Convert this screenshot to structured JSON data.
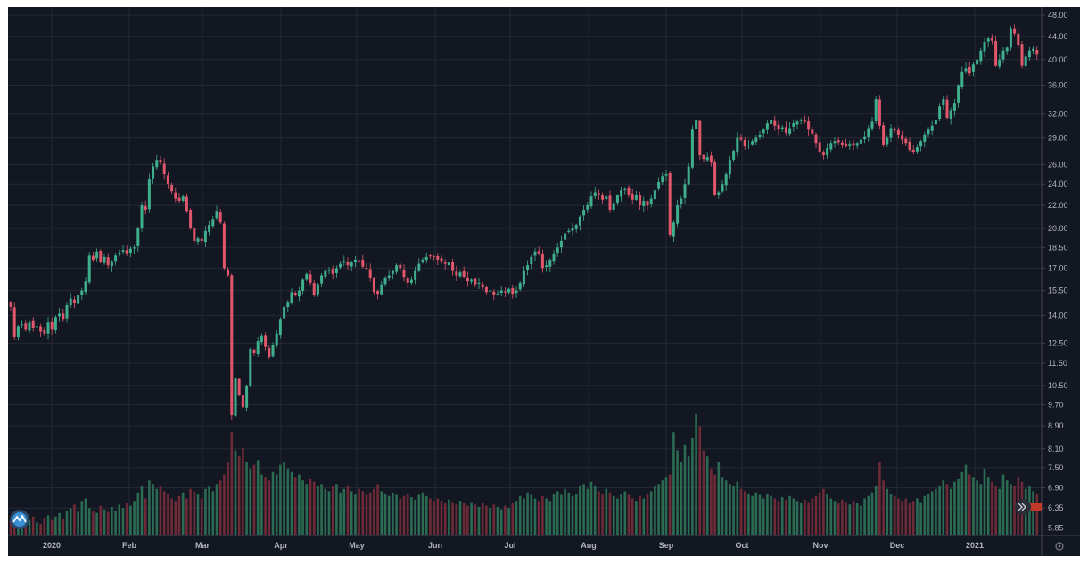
{
  "chart_data": {
    "type": "candlestick",
    "title": "",
    "xlabel": "",
    "ylabel": "",
    "y_scale": "log",
    "ylim": [
      5.85,
      48.0
    ],
    "grid": true,
    "price_ticks": [
      "48.00",
      "44.00",
      "40.00",
      "36.00",
      "32.00",
      "29.00",
      "26.00",
      "24.00",
      "22.00",
      "20.00",
      "18.50",
      "17.00",
      "15.50",
      "14.00",
      "12.50",
      "11.50",
      "10.50",
      "9.70",
      "8.90",
      "8.10",
      "7.50",
      "6.90",
      "6.35",
      "5.85"
    ],
    "time_ticks": [
      "2020",
      "Feb",
      "Mar",
      "Apr",
      "May",
      "Jun",
      "Jul",
      "Aug",
      "Sep",
      "Oct",
      "Nov",
      "Dec",
      "2021"
    ],
    "close": [
      14.5,
      12.8,
      13.4,
      13.5,
      13.2,
      13.6,
      13.3,
      13.4,
      13.1,
      13.0,
      13.6,
      13.2,
      13.9,
      14.1,
      13.8,
      14.6,
      15.0,
      14.7,
      15.2,
      15.5,
      16.1,
      17.9,
      17.6,
      18.2,
      17.4,
      17.8,
      17.2,
      17.5,
      17.9,
      18.1,
      18.3,
      18.0,
      18.4,
      18.5,
      20.0,
      22.0,
      21.6,
      24.5,
      25.8,
      26.5,
      26.2,
      25.0,
      24.0,
      23.3,
      22.6,
      22.4,
      22.8,
      21.5,
      20.0,
      19.0,
      19.2,
      19.0,
      19.8,
      20.3,
      20.8,
      21.5,
      20.5,
      17.0,
      16.5,
      9.3,
      10.8,
      10.1,
      9.6,
      10.5,
      12.2,
      12.0,
      12.6,
      12.9,
      12.3,
      11.8,
      12.4,
      13.0,
      13.8,
      14.5,
      14.8,
      15.4,
      15.2,
      15.5,
      16.2,
      16.6,
      16.0,
      15.2,
      15.9,
      16.5,
      16.8,
      16.9,
      16.6,
      17.0,
      17.3,
      17.5,
      17.2,
      17.4,
      17.6,
      17.5,
      17.1,
      17.0,
      16.3,
      15.4,
      15.3,
      15.9,
      16.3,
      16.5,
      16.8,
      17.2,
      17.0,
      16.4,
      16.0,
      16.2,
      16.8,
      17.3,
      17.6,
      17.8,
      17.9,
      17.8,
      17.6,
      17.5,
      17.3,
      17.4,
      16.8,
      16.5,
      16.7,
      16.4,
      16.1,
      16.2,
      15.9,
      16.0,
      15.7,
      15.4,
      15.5,
      15.2,
      15.3,
      15.5,
      15.4,
      15.6,
      15.3,
      15.5,
      16.0,
      16.8,
      17.2,
      17.8,
      18.2,
      18.0,
      17.0,
      17.2,
      17.6,
      18.0,
      18.5,
      19.0,
      19.6,
      19.8,
      20.0,
      20.3,
      21.0,
      21.6,
      22.0,
      22.8,
      23.2,
      23.0,
      22.5,
      22.8,
      21.6,
      22.2,
      22.9,
      23.4,
      23.5,
      23.0,
      22.5,
      22.9,
      22.0,
      22.4,
      22.0,
      22.6,
      23.4,
      24.2,
      24.8,
      25.0,
      19.5,
      20.5,
      22.0,
      22.6,
      24.0,
      25.8,
      30.0,
      31.2,
      27.0,
      26.6,
      26.8,
      26.2,
      23.0,
      23.2,
      24.0,
      25.0,
      26.5,
      27.5,
      29.0,
      28.8,
      28.0,
      28.2,
      28.6,
      29.0,
      29.4,
      30.0,
      30.8,
      31.2,
      30.5,
      30.0,
      30.3,
      29.6,
      30.2,
      30.8,
      31.0,
      31.2,
      31.0,
      30.0,
      29.5,
      28.4,
      27.4,
      27.0,
      27.8,
      28.4,
      28.6,
      28.5,
      28.2,
      28.0,
      28.3,
      28.1,
      28.4,
      28.8,
      29.2,
      30.2,
      31.0,
      34.0,
      30.5,
      28.2,
      29.0,
      30.2,
      30.0,
      29.4,
      28.8,
      28.4,
      27.6,
      27.4,
      27.9,
      28.6,
      29.4,
      30.0,
      30.5,
      31.2,
      33.0,
      34.0,
      31.5,
      32.5,
      33.5,
      36.0,
      38.0,
      38.6,
      37.8,
      39.2,
      40.0,
      41.5,
      43.0,
      43.6,
      43.2,
      39.0,
      40.0,
      41.5,
      42.0,
      45.5,
      44.5,
      42.5,
      39.0,
      40.5,
      41.5,
      41.8,
      40.8
    ],
    "volume_relative": [
      12,
      10,
      14,
      11,
      13,
      12,
      15,
      10,
      9,
      14,
      16,
      12,
      15,
      18,
      13,
      20,
      22,
      25,
      19,
      28,
      30,
      22,
      20,
      18,
      24,
      21,
      19,
      23,
      20,
      25,
      22,
      26,
      24,
      28,
      35,
      40,
      30,
      45,
      42,
      38,
      40,
      36,
      34,
      30,
      28,
      32,
      35,
      30,
      38,
      36,
      34,
      30,
      38,
      40,
      36,
      42,
      45,
      50,
      60,
      85,
      70,
      65,
      72,
      60,
      55,
      58,
      62,
      50,
      48,
      45,
      52,
      50,
      58,
      60,
      55,
      52,
      48,
      50,
      45,
      42,
      46,
      44,
      40,
      42,
      38,
      36,
      40,
      42,
      35,
      38,
      40,
      36,
      34,
      38,
      36,
      33,
      35,
      38,
      42,
      36,
      34,
      32,
      35,
      33,
      30,
      32,
      34,
      31,
      29,
      33,
      35,
      32,
      30,
      28,
      30,
      28,
      26,
      29,
      27,
      25,
      28,
      26,
      24,
      27,
      25,
      23,
      26,
      24,
      22,
      25,
      23,
      21,
      24,
      22,
      26,
      28,
      32,
      30,
      35,
      33,
      30,
      28,
      32,
      30,
      28,
      34,
      36,
      33,
      38,
      35,
      32,
      34,
      40,
      42,
      38,
      44,
      40,
      36,
      34,
      38,
      35,
      32,
      30,
      34,
      36,
      33,
      30,
      28,
      32,
      30,
      34,
      36,
      40,
      42,
      45,
      48,
      50,
      85,
      70,
      60,
      75,
      65,
      80,
      100,
      90,
      70,
      65,
      55,
      50,
      60,
      48,
      45,
      42,
      40,
      44,
      38,
      36,
      34,
      32,
      35,
      33,
      30,
      34,
      32,
      30,
      28,
      31,
      29,
      32,
      30,
      28,
      26,
      29,
      27,
      30,
      32,
      35,
      38,
      34,
      30,
      28,
      26,
      29,
      27,
      25,
      28,
      26,
      24,
      30,
      32,
      35,
      40,
      60,
      45,
      38,
      34,
      32,
      30,
      28,
      30,
      26,
      28,
      30,
      27,
      32,
      34,
      36,
      38,
      40,
      45,
      42,
      38,
      44,
      46,
      52,
      58,
      50,
      48,
      45,
      42,
      55,
      48,
      44,
      40,
      38,
      50,
      45,
      42,
      40,
      48,
      44,
      38,
      40,
      36,
      34,
      32
    ],
    "colors": {
      "background": "#131722",
      "grid": "#242834",
      "up": "#3fae8c",
      "down": "#e0566b",
      "up_volume": "#2b6b52",
      "down_volume": "#6e2a36",
      "axis_text": "#b2b5be"
    }
  },
  "icons": {
    "logo": "tradingview-cloud-logo",
    "scroll_realtime": "double-chevron-right-icon",
    "settings": "gear-icon"
  }
}
